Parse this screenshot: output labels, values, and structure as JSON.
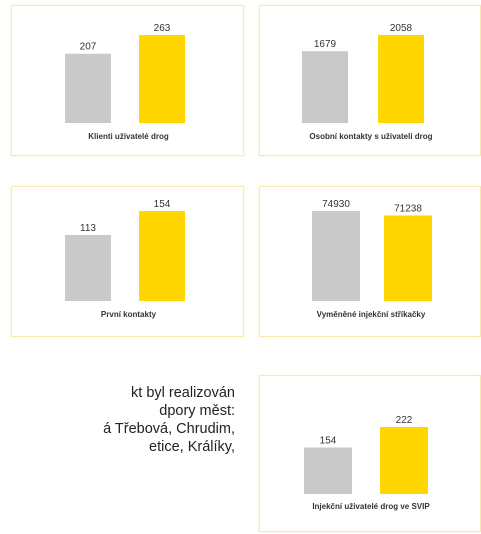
{
  "chart_data": [
    {
      "type": "bar",
      "title": "Klienti uživatelé drog",
      "values": [
        207,
        263
      ],
      "colors": [
        "#c9c9c9",
        "#ffd600"
      ]
    },
    {
      "type": "bar",
      "title": "Osobní kontakty s uživateli drog",
      "values": [
        1679,
        2058
      ],
      "colors": [
        "#c9c9c9",
        "#ffd600"
      ]
    },
    {
      "type": "bar",
      "title": "První kontakty",
      "values": [
        113,
        154
      ],
      "colors": [
        "#c9c9c9",
        "#ffd600"
      ]
    },
    {
      "type": "bar",
      "title": "Vyměněné injekční stříkačky",
      "values": [
        74930,
        71238
      ],
      "colors": [
        "#c9c9c9",
        "#ffd600"
      ]
    },
    {
      "type": "bar",
      "title": "Injekční uživatelé drog ve SVIP",
      "values": [
        154,
        222
      ],
      "colors": [
        "#c9c9c9",
        "#ffd600"
      ]
    }
  ],
  "text_block": {
    "lines": [
      "kt byl realizován",
      "dpory měst:",
      "á Třebová, Chrudim,",
      "etice, Králíky,",
      "..."
    ]
  }
}
